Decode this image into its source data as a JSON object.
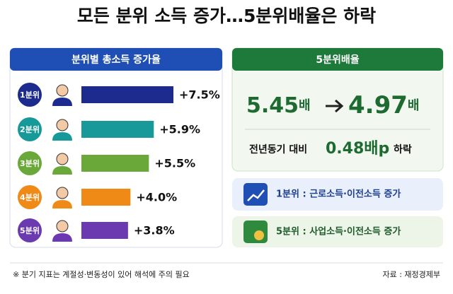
{
  "title": "모든 분위 소득 증가…5분위배율은 하락",
  "chart_data": {
    "type": "bar",
    "title": "분위별 총소득 증가율",
    "categories": [
      "1분위",
      "2분위",
      "3분위",
      "4분위",
      "5분위"
    ],
    "values": [
      7.5,
      5.9,
      5.5,
      4.0,
      3.8
    ],
    "value_labels": [
      "+7.5%",
      "+5.9%",
      "+5.5%",
      "+4.0%",
      "+3.8%"
    ],
    "colors": [
      "#1d2b8f",
      "#17999a",
      "#6aa83a",
      "#f08a17",
      "#6b3ab0"
    ]
  },
  "ratio": {
    "title": "5분위배율",
    "before": "5.45",
    "before_unit": "배",
    "after": "4.97",
    "after_unit": "배",
    "change_prefix": "전년동기 대비",
    "change": "0.48배p",
    "change_suffix": "하락"
  },
  "notes": [
    "1분위 : 근로소득·이전소득 증가",
    "5분위 : 사업소득·이전소득 증가"
  ],
  "footer": {
    "note": "※ 분기 지표는 계절성·변동성이 있어 해석에 주의 필요",
    "source": "자료 : 재정경제부"
  }
}
